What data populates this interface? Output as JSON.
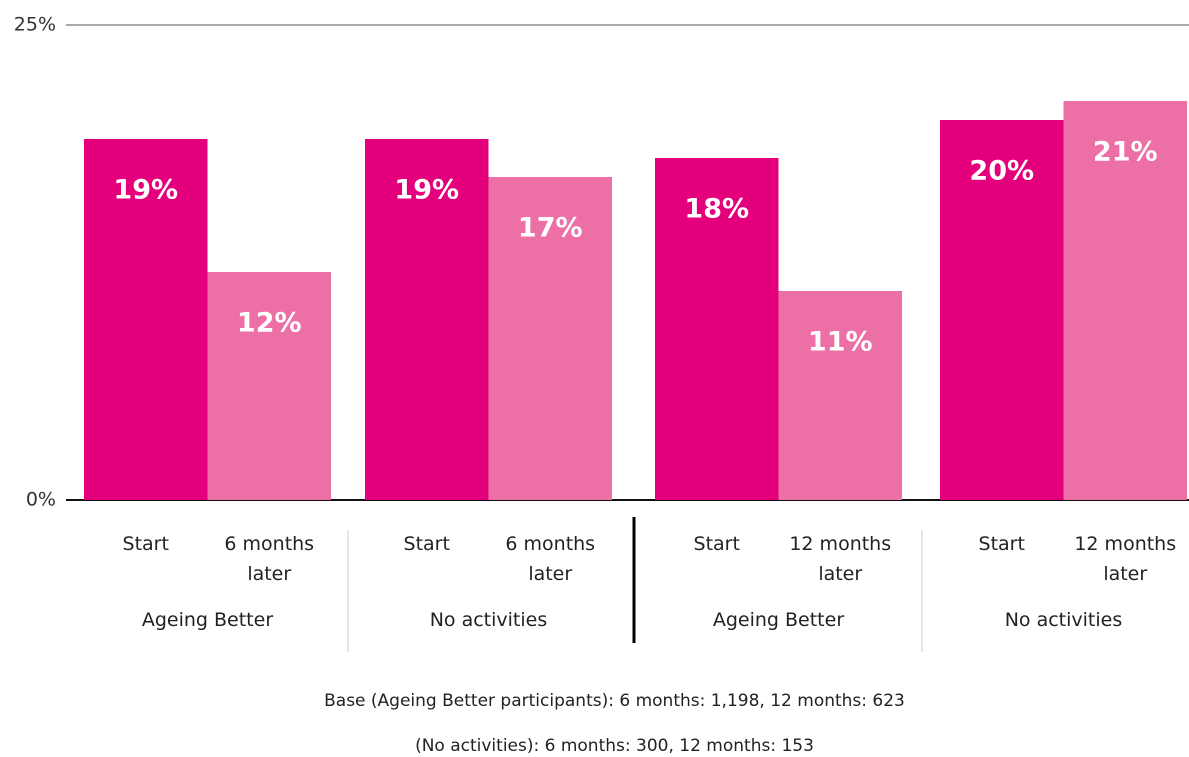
{
  "chart_data": {
    "type": "bar",
    "categories": [
      "Start",
      "6 months later",
      "Start",
      "6 months later",
      "Start",
      "12 months later",
      "Start",
      "12 months later"
    ],
    "groups": [
      "Ageing Better",
      "No activities",
      "Ageing Better",
      "No activities"
    ],
    "values": [
      19,
      12,
      19,
      17,
      18,
      11,
      20,
      21
    ],
    "value_labels": [
      "19%",
      "12%",
      "19%",
      "17%",
      "18%",
      "11%",
      "20%",
      "21%"
    ],
    "colors": [
      "#e4007c",
      "#ec6fa5",
      "#e4007c",
      "#ec6fa5",
      "#e4007c",
      "#ec6fa5",
      "#e4007c",
      "#ec6fa5"
    ],
    "ylim": [
      0,
      25
    ],
    "yticks": [
      {
        "value": 0,
        "label": "0%"
      },
      {
        "value": 25,
        "label": "25%"
      }
    ],
    "notes": [
      "Base (Ageing Better participants): 6 months: 1,198, 12 months: 623",
      "(No activities): 6 months: 300, 12 months: 153"
    ]
  }
}
